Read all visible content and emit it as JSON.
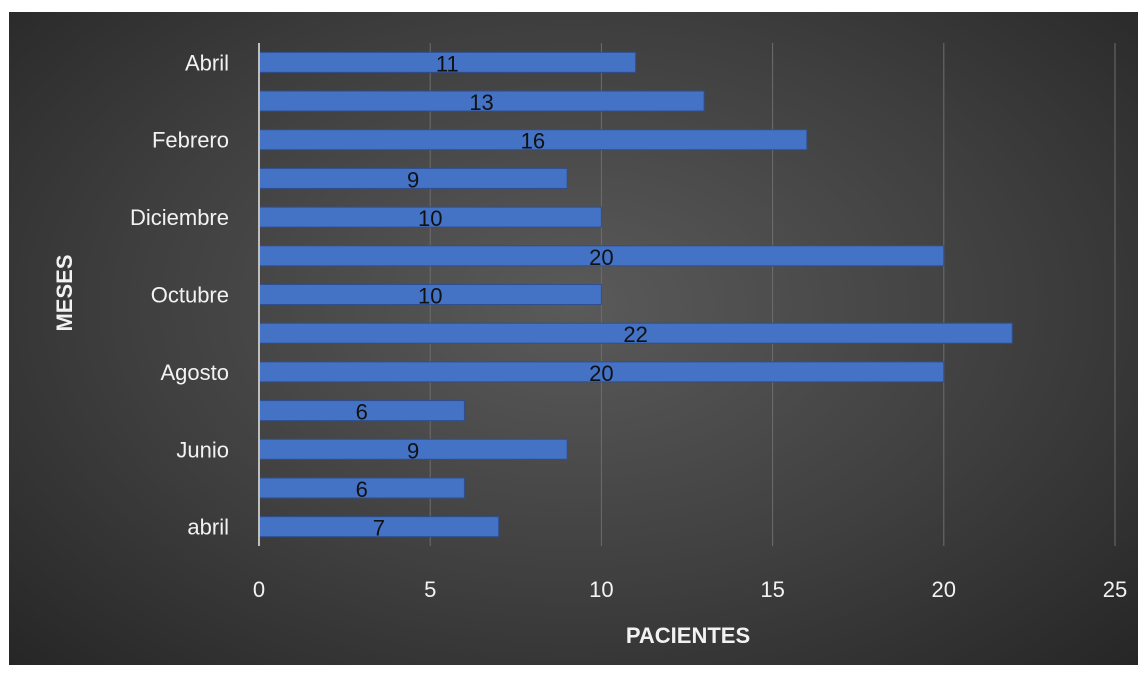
{
  "chart_data": {
    "type": "bar",
    "orientation": "horizontal",
    "categories": [
      "abril",
      "",
      "Junio",
      "",
      "Agosto",
      "",
      "Octubre",
      "",
      "Diciembre",
      "",
      "Febrero",
      "",
      "Abril"
    ],
    "values": [
      7,
      6,
      9,
      6,
      20,
      22,
      10,
      20,
      10,
      9,
      16,
      13,
      11
    ],
    "xlabel": "PACIENTES",
    "ylabel": "MESES",
    "xlim": [
      0,
      25
    ],
    "xticks": [
      "0",
      "5",
      "10",
      "15",
      "20",
      "25"
    ],
    "grid": "vertical",
    "data_labels": true,
    "bar_color": "#4472c4"
  }
}
